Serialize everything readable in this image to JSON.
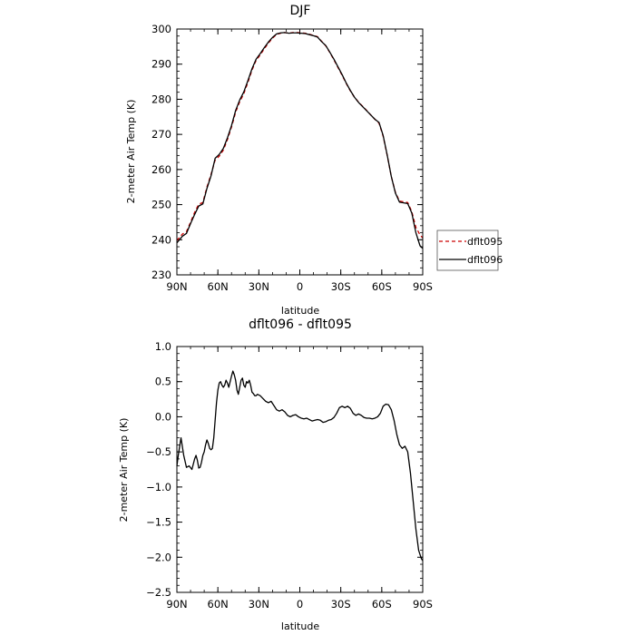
{
  "chart_data": [
    {
      "type": "line",
      "title": "DJF",
      "xlabel": "latitude",
      "ylabel": "2-meter Air Temp (K)",
      "xlim": [
        90,
        -90
      ],
      "ylim": [
        230,
        300
      ],
      "x_ticks": [
        {
          "value": 90,
          "label": "90N"
        },
        {
          "value": 60,
          "label": "60N"
        },
        {
          "value": 30,
          "label": "30N"
        },
        {
          "value": 0,
          "label": "0"
        },
        {
          "value": -30,
          "label": "30S"
        },
        {
          "value": -60,
          "label": "60S"
        },
        {
          "value": -90,
          "label": "90S"
        }
      ],
      "y_ticks": [
        {
          "value": 230,
          "label": "230"
        },
        {
          "value": 240,
          "label": "240"
        },
        {
          "value": 250,
          "label": "250"
        },
        {
          "value": 260,
          "label": "260"
        },
        {
          "value": 270,
          "label": "270"
        },
        {
          "value": 280,
          "label": "280"
        },
        {
          "value": 290,
          "label": "290"
        },
        {
          "value": 300,
          "label": "300"
        }
      ],
      "grid": false,
      "legend": {
        "placement": "right",
        "entries": [
          "dflt095",
          "dflt096"
        ]
      },
      "series": [
        {
          "name": "dflt095",
          "color": "#cc0000",
          "dash": "dashed",
          "x": [
            90,
            86,
            83,
            80,
            77,
            74,
            71,
            68,
            65,
            62,
            59,
            56,
            53,
            50,
            47,
            44,
            41,
            38,
            35,
            32,
            29,
            26,
            23,
            20,
            17,
            14,
            11,
            8,
            5,
            2,
            -1,
            -4,
            -7,
            -10,
            -13,
            -16,
            -19,
            -22,
            -25,
            -28,
            -31,
            -34,
            -37,
            -40,
            -43,
            -46,
            -49,
            -52,
            -55,
            -58,
            -61,
            -64,
            -67,
            -70,
            -73,
            -76,
            -79,
            -82,
            -85,
            -88,
            -90
          ],
          "y": [
            239.8,
            241.6,
            242.3,
            245.0,
            247.8,
            250.1,
            250.6,
            255.0,
            258.6,
            262.7,
            263.8,
            265.5,
            268.5,
            272.1,
            276.3,
            279.3,
            281.6,
            284.8,
            288.3,
            291.1,
            292.6,
            294.4,
            296.0,
            297.4,
            298.5,
            298.8,
            299.0,
            298.8,
            299.0,
            299.0,
            298.9,
            298.8,
            298.5,
            298.2,
            297.8,
            296.5,
            295.2,
            293.3,
            291.2,
            289.0,
            286.8,
            284.5,
            282.4,
            280.6,
            279.2,
            278.0,
            276.8,
            275.5,
            274.3,
            273.2,
            269.5,
            264.0,
            258.0,
            253.5,
            251.0,
            250.8,
            250.6,
            248.0,
            243.5,
            241.4,
            240.5
          ]
        },
        {
          "name": "dflt096",
          "color": "#000000",
          "dash": "solid",
          "x": [
            90,
            86,
            83,
            80,
            77,
            74,
            71,
            68,
            65,
            62,
            59,
            56,
            53,
            50,
            47,
            44,
            41,
            38,
            35,
            32,
            29,
            26,
            23,
            20,
            17,
            14,
            11,
            8,
            5,
            2,
            -1,
            -4,
            -7,
            -10,
            -13,
            -16,
            -19,
            -22,
            -25,
            -28,
            -31,
            -34,
            -37,
            -40,
            -43,
            -46,
            -49,
            -52,
            -55,
            -58,
            -61,
            -64,
            -67,
            -70,
            -73,
            -76,
            -79,
            -82,
            -85,
            -88,
            -90
          ],
          "y": [
            239.1,
            241.0,
            241.8,
            244.6,
            247.2,
            249.6,
            250.2,
            254.6,
            258.2,
            263.2,
            264.3,
            266.0,
            269.0,
            272.5,
            276.8,
            279.8,
            282.1,
            285.3,
            288.7,
            291.4,
            293.0,
            294.7,
            296.3,
            297.6,
            298.6,
            298.9,
            299.0,
            298.8,
            298.9,
            298.9,
            298.8,
            298.7,
            298.4,
            298.1,
            297.7,
            296.4,
            295.3,
            293.4,
            291.4,
            289.2,
            287.0,
            284.6,
            282.5,
            280.6,
            279.1,
            277.9,
            276.7,
            275.5,
            274.3,
            273.4,
            269.7,
            264.1,
            258.0,
            253.3,
            250.7,
            250.5,
            250.3,
            247.6,
            242.0,
            238.3,
            237.5
          ]
        }
      ]
    },
    {
      "type": "line",
      "title": "dflt096 - dflt095",
      "xlabel": "latitude",
      "ylabel": "2-meter Air Temp (K)",
      "xlim": [
        90,
        -90
      ],
      "ylim": [
        -2.5,
        1.0
      ],
      "x_ticks": [
        {
          "value": 90,
          "label": "90N"
        },
        {
          "value": 60,
          "label": "60N"
        },
        {
          "value": 30,
          "label": "30N"
        },
        {
          "value": 0,
          "label": "0"
        },
        {
          "value": -30,
          "label": "30S"
        },
        {
          "value": -60,
          "label": "60S"
        },
        {
          "value": -90,
          "label": "90S"
        }
      ],
      "y_ticks": [
        {
          "value": 1.0,
          "label": "1.0"
        },
        {
          "value": 0.5,
          "label": "0.5"
        },
        {
          "value": 0.0,
          "label": "0.0"
        },
        {
          "value": -0.5,
          "label": "−0.5"
        },
        {
          "value": -1.0,
          "label": "−1.0"
        },
        {
          "value": -1.5,
          "label": "−1.5"
        },
        {
          "value": -2.0,
          "label": "−2.0"
        },
        {
          "value": -2.5,
          "label": "−2.5"
        }
      ],
      "grid": false,
      "series": [
        {
          "color": "#000000",
          "x": [
            90,
            89,
            87,
            85,
            83,
            81,
            79,
            77,
            76,
            75,
            74,
            73,
            72,
            71,
            70,
            69,
            68,
            67,
            66,
            65,
            64,
            63,
            62,
            61,
            60,
            59,
            58,
            57,
            56,
            55,
            54,
            53,
            52,
            51,
            50,
            49,
            48,
            47,
            46,
            45,
            44,
            43,
            42,
            41,
            40,
            39,
            38,
            37,
            36,
            35,
            34,
            33,
            32,
            31,
            29,
            27,
            25,
            23,
            21,
            19,
            17,
            15,
            13,
            11,
            9,
            7,
            5,
            3,
            1,
            -1,
            -3,
            -5,
            -7,
            -9,
            -11,
            -13,
            -15,
            -17,
            -19,
            -21,
            -23,
            -25,
            -27,
            -29,
            -31,
            -33,
            -35,
            -37,
            -39,
            -41,
            -43,
            -45,
            -47,
            -49,
            -51,
            -53,
            -55,
            -57,
            -59,
            -61,
            -63,
            -65,
            -67,
            -69,
            -71,
            -73,
            -75,
            -77,
            -79,
            -81,
            -83,
            -85,
            -87,
            -89,
            -90
          ],
          "y": [
            -0.7,
            -0.55,
            -0.3,
            -0.55,
            -0.72,
            -0.7,
            -0.75,
            -0.6,
            -0.55,
            -0.62,
            -0.73,
            -0.72,
            -0.65,
            -0.55,
            -0.5,
            -0.4,
            -0.33,
            -0.38,
            -0.45,
            -0.47,
            -0.45,
            -0.3,
            -0.05,
            0.2,
            0.38,
            0.48,
            0.5,
            0.45,
            0.42,
            0.45,
            0.52,
            0.48,
            0.42,
            0.5,
            0.58,
            0.65,
            0.6,
            0.52,
            0.38,
            0.32,
            0.42,
            0.52,
            0.55,
            0.45,
            0.42,
            0.5,
            0.48,
            0.52,
            0.45,
            0.35,
            0.33,
            0.3,
            0.3,
            0.32,
            0.3,
            0.26,
            0.22,
            0.2,
            0.22,
            0.16,
            0.1,
            0.08,
            0.1,
            0.07,
            0.02,
            0.0,
            0.02,
            0.03,
            0.0,
            -0.02,
            -0.03,
            -0.02,
            -0.04,
            -0.06,
            -0.05,
            -0.04,
            -0.05,
            -0.08,
            -0.07,
            -0.05,
            -0.04,
            -0.01,
            0.05,
            0.13,
            0.15,
            0.13,
            0.15,
            0.12,
            0.05,
            0.02,
            0.04,
            0.02,
            -0.01,
            -0.02,
            -0.02,
            -0.03,
            -0.02,
            0.0,
            0.05,
            0.15,
            0.18,
            0.17,
            0.1,
            -0.05,
            -0.25,
            -0.4,
            -0.45,
            -0.42,
            -0.5,
            -0.8,
            -1.2,
            -1.6,
            -1.9,
            -2.02,
            -2.05
          ]
        }
      ]
    }
  ]
}
